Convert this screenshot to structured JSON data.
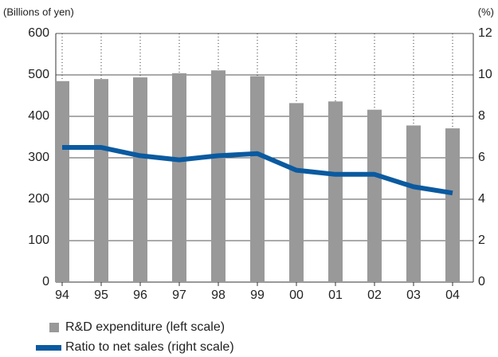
{
  "chart_data": {
    "type": "bar",
    "y_label": "(Billions of yen)",
    "y2_label": "(%)",
    "categories": [
      "94",
      "95",
      "96",
      "97",
      "98",
      "99",
      "00",
      "01",
      "02",
      "03",
      "04"
    ],
    "series": [
      {
        "name": "R&D expenditure (left scale)",
        "type": "bar",
        "color": "#999999",
        "values": [
          485,
          490,
          494,
          504,
          511,
          497,
          432,
          436,
          416,
          378,
          371
        ]
      },
      {
        "name": "Ratio to net sales (right scale)",
        "type": "line",
        "axis": "y2",
        "color": "#0a5aa0",
        "values": [
          6.5,
          6.5,
          6.1,
          5.9,
          6.1,
          6.2,
          5.4,
          5.2,
          5.2,
          4.6,
          4.3
        ]
      }
    ],
    "ylim": [
      0,
      600
    ],
    "yticks": [
      0,
      100,
      200,
      300,
      400,
      500,
      600
    ],
    "y2lim": [
      0,
      12
    ],
    "y2ticks": [
      0,
      2,
      4,
      6,
      8,
      10,
      12
    ],
    "grid": true
  }
}
